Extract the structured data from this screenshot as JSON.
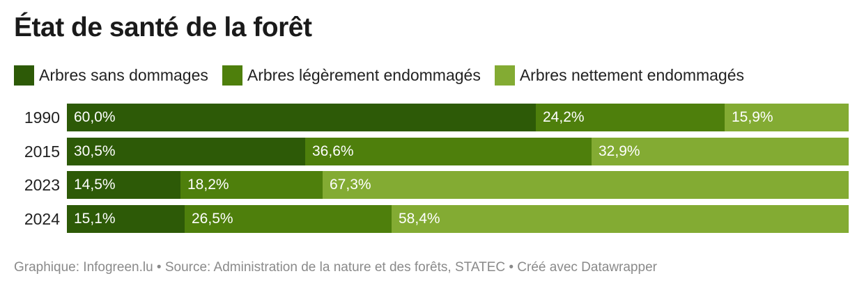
{
  "title": "État de santé de la forêt",
  "footer": "Graphique: Infogreen.lu • Source: Administration de la nature et des forêts, STATEC • Créé avec Datawrapper",
  "colors": {
    "sans_dommages": "#2d5a07",
    "legerement": "#4e7f0c",
    "nettement": "#83ab33",
    "label_text": "#ffffff"
  },
  "chart_data": {
    "type": "bar",
    "orientation": "horizontal",
    "stacked": true,
    "title": "État de santé de la forêt",
    "categories": [
      "1990",
      "2015",
      "2023",
      "2024"
    ],
    "series": [
      {
        "name": "Arbres sans dommages",
        "color": "#2d5a07",
        "values": [
          60.0,
          30.5,
          14.5,
          15.1
        ],
        "labels": [
          "60,0%",
          "30,5%",
          "14,5%",
          "15,1%"
        ]
      },
      {
        "name": "Arbres légèrement endommagés",
        "color": "#4e7f0c",
        "values": [
          24.2,
          36.6,
          18.2,
          26.5
        ],
        "labels": [
          "24,2%",
          "36,6%",
          "18,2%",
          "26,5%"
        ]
      },
      {
        "name": "Arbres nettement endommagés",
        "color": "#83ab33",
        "values": [
          15.9,
          32.9,
          67.3,
          58.4
        ],
        "labels": [
          "15,9%",
          "32,9%",
          "67,3%",
          "58,4%"
        ]
      }
    ],
    "xlim": [
      0,
      100
    ],
    "grid": false,
    "legend_position": "top-left"
  }
}
